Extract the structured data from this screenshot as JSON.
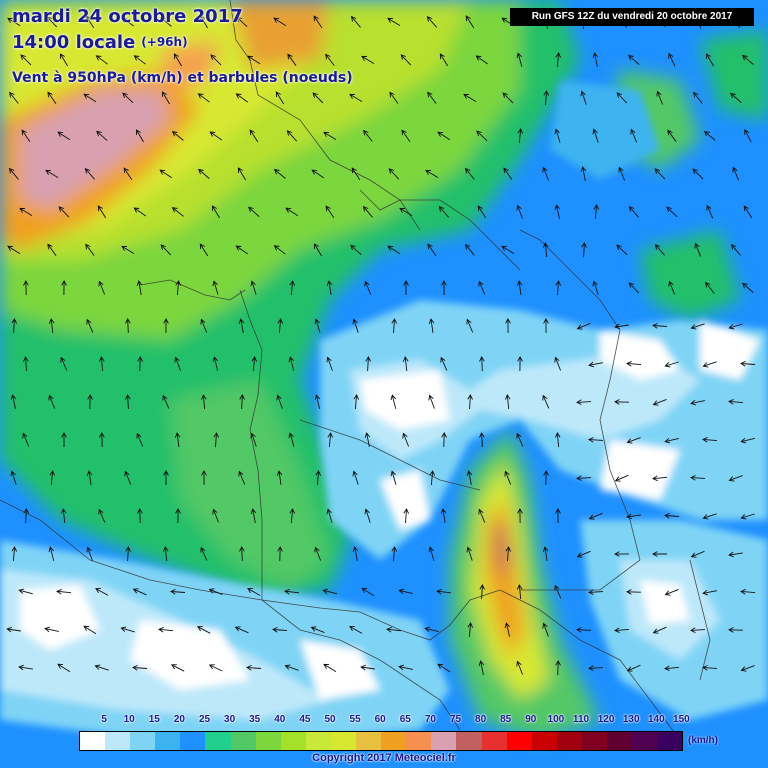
{
  "header": {
    "date": "mardi 24 octobre 2017",
    "time": "14:00 locale",
    "lead": "(+96h)",
    "variable": "Vent à 950hPa (km/h) et barbules (noeuds)"
  },
  "run_info": "Run GFS 12Z du vendredi 20 octobre 2017",
  "legend": {
    "unit": "(km/h)",
    "labels": [
      "5",
      "10",
      "15",
      "20",
      "25",
      "30",
      "35",
      "40",
      "45",
      "50",
      "55",
      "60",
      "65",
      "70",
      "75",
      "80",
      "85",
      "90",
      "100",
      "110",
      "120",
      "130",
      "140",
      "150"
    ],
    "colors": [
      "#ffffff",
      "#bde8fa",
      "#7fd4f6",
      "#3cb3f0",
      "#1e90ff",
      "#21d08c",
      "#52c866",
      "#7cd63e",
      "#a4e22a",
      "#c8e83a",
      "#d8e830",
      "#e8c040",
      "#f0a020",
      "#f59050",
      "#d8a0b0",
      "#c06060",
      "#e83030",
      "#ff0000",
      "#c80000",
      "#a00010",
      "#800020",
      "#600030",
      "#500050",
      "#3a0060"
    ]
  },
  "copyright": "Copyright 2017 Meteociel.fr"
}
